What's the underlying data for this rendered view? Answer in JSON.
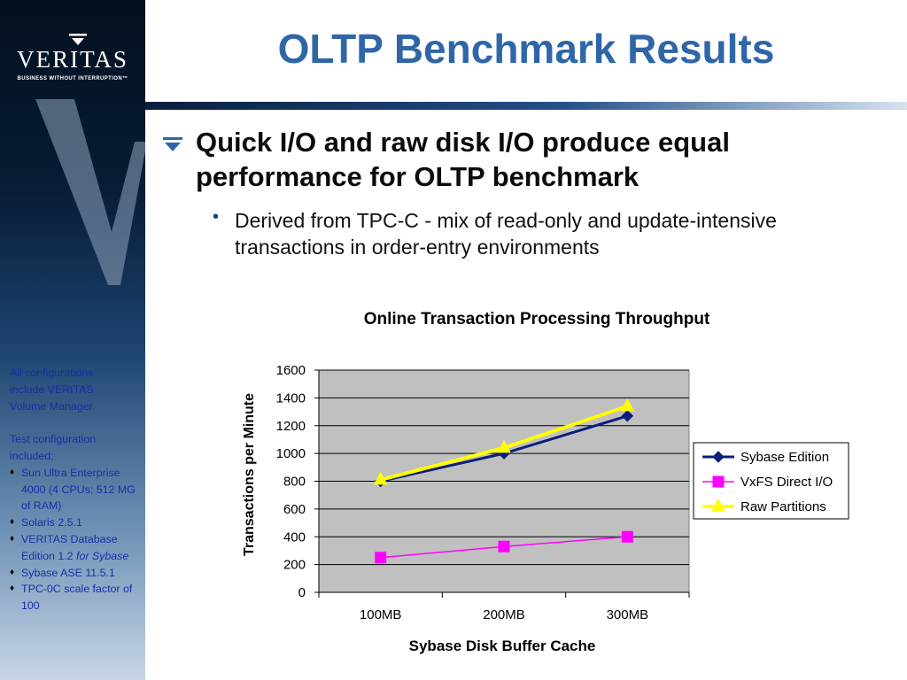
{
  "sidebar": {
    "logo_text": "VERITAS",
    "logo_tagline": "BUSINESS WITHOUT INTERRUPTION™",
    "notes": {
      "line1": "All configurations",
      "line2": "include VERITAS",
      "line3": "Volume Manager.",
      "test_heading_1": "Test configuration",
      "test_heading_2": "included:",
      "items": [
        "Sun Ultra Enterprise 4000 (4 CPUs; 512 MG of RAM)",
        "Solaris 2.5.1",
        "VERITAS Database Edition 1.2",
        "Sybase ASE 11.5.1",
        "TPC-0C scale factor of 100"
      ],
      "item3_italic": "for Sybase"
    }
  },
  "title": "OLTP Benchmark Results",
  "bullet_main": "Quick I/O and raw disk I/O produce equal performance for OLTP benchmark",
  "bullet_sub": "Derived from TPC-C - mix of read-only and update-intensive transactions in order-entry environments",
  "colors": {
    "title": "#2f66a8",
    "sybase_edition": "#0b1e7a",
    "vxfs_direct_io": "#ff00ff",
    "raw_partitions": "#ffff00",
    "plot_area": "#c0c0c0"
  },
  "chart_data": {
    "type": "line",
    "title": "Online Transaction Processing Throughput",
    "xlabel": "Sybase Disk Buffer Cache",
    "ylabel": "Transactions per Minute",
    "categories": [
      "100MB",
      "200MB",
      "300MB"
    ],
    "ylim": [
      0,
      1600
    ],
    "yticks": [
      0,
      200,
      400,
      600,
      800,
      1000,
      1200,
      1400,
      1600
    ],
    "grid": true,
    "legend_position": "right",
    "series": [
      {
        "name": "Sybase Edition",
        "values": [
          800,
          1000,
          1270
        ],
        "color": "#0b1e7a",
        "marker": "diamond"
      },
      {
        "name": "VxFS Direct I/O",
        "values": [
          250,
          330,
          400
        ],
        "color": "#ff00ff",
        "marker": "square"
      },
      {
        "name": "Raw Partitions",
        "values": [
          810,
          1040,
          1340
        ],
        "color": "#ffff00",
        "marker": "triangle"
      }
    ]
  }
}
